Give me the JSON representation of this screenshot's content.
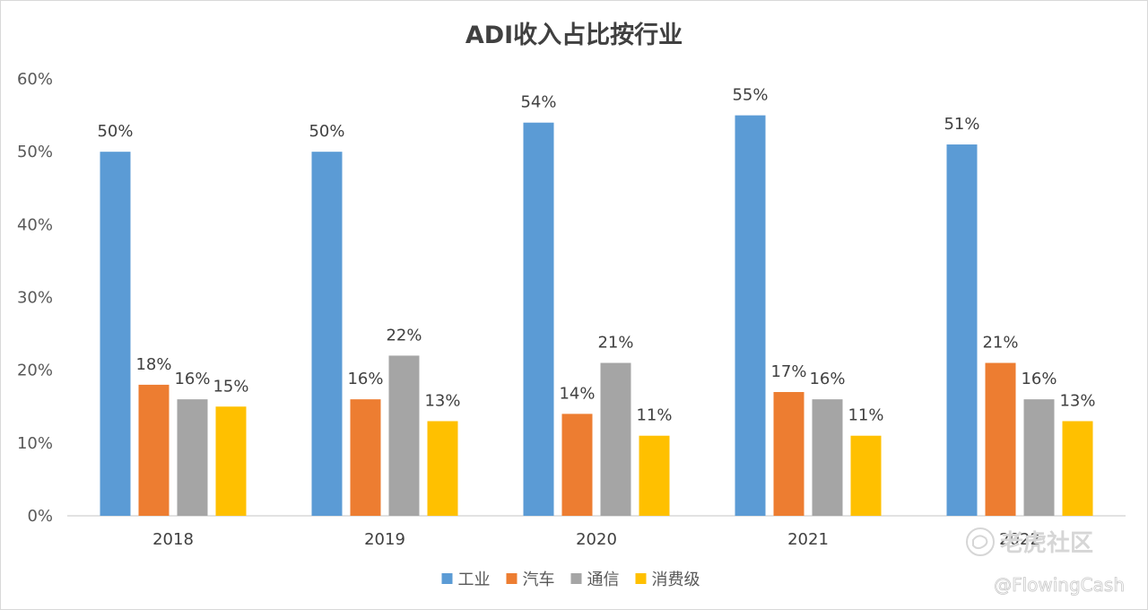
{
  "chart_data": {
    "type": "bar",
    "title": "ADI收入占比按行业",
    "categories": [
      "2018",
      "2019",
      "2020",
      "2021",
      "2022"
    ],
    "series": [
      {
        "name": "工业",
        "color": "#5B9BD5",
        "values": [
          50,
          50,
          54,
          55,
          51
        ]
      },
      {
        "name": "汽车",
        "color": "#ED7D31",
        "values": [
          18,
          16,
          14,
          17,
          21
        ]
      },
      {
        "name": "通信",
        "color": "#A5A5A5",
        "values": [
          16,
          22,
          21,
          16,
          16
        ]
      },
      {
        "name": "消费级",
        "color": "#FFC000",
        "values": [
          15,
          13,
          11,
          11,
          13
        ]
      }
    ],
    "ylim": [
      0,
      60
    ],
    "yticks": [
      "0%",
      "10%",
      "20%",
      "30%",
      "40%",
      "50%",
      "60%"
    ],
    "value_suffix": "%",
    "grid": false,
    "legend_position": "bottom"
  },
  "watermark": {
    "brand": "老虎社区",
    "handle": "@FlowingCash"
  }
}
